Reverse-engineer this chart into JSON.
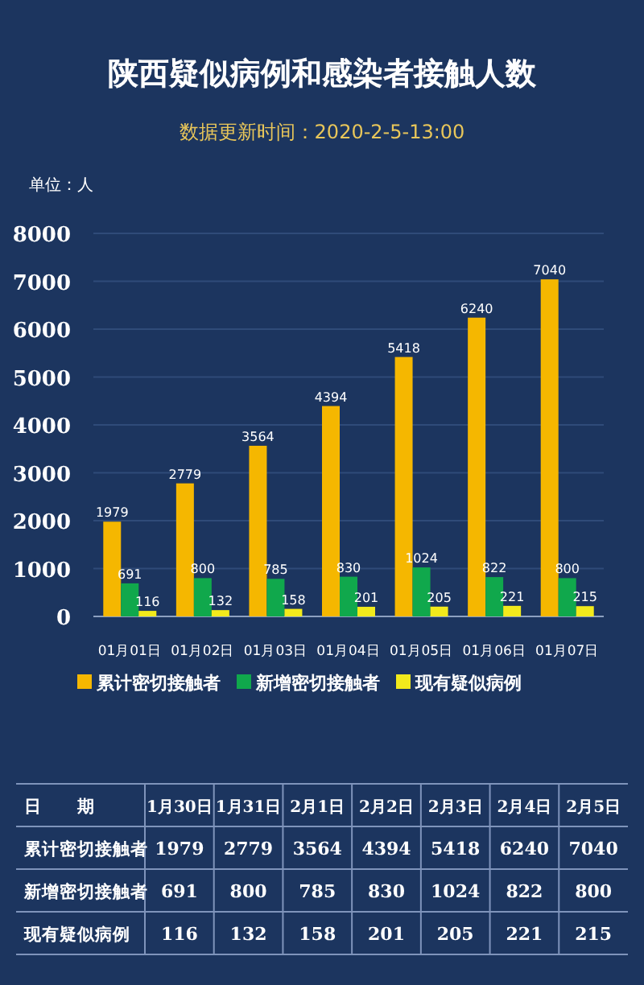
{
  "chart_data": [
    {
      "type": "bar",
      "title": "陕西疑似病例和感染者接触人数",
      "subtitle": "数据更新时间：2020-2-5-13:00",
      "ylabel": "单位：人",
      "categories": [
        "01月01日",
        "01月02日",
        "01月03日",
        "01月04日",
        "01月05日",
        "01月06日",
        "01月07日"
      ],
      "series": [
        {
          "name": "累计密切接触者",
          "color": "#f5b700",
          "values": [
            1979,
            2779,
            3564,
            4394,
            5418,
            6240,
            7040
          ]
        },
        {
          "name": "新增密切接触者",
          "color": "#10a84c",
          "values": [
            691,
            800,
            785,
            830,
            1024,
            822,
            800
          ]
        },
        {
          "name": "现有疑似病例",
          "color": "#f2ea1c",
          "values": [
            116,
            132,
            158,
            201,
            205,
            221,
            215
          ]
        }
      ],
      "ylim": [
        0,
        8000
      ],
      "yticks": [
        0,
        1000,
        2000,
        3000,
        4000,
        5000,
        6000,
        7000,
        8000
      ],
      "grid": "y",
      "legend": "bottom",
      "data_labels": true
    },
    {
      "type": "other",
      "annotations": [
        "日　　期"
      ],
      "categories": [
        "1月30日",
        "1月31日",
        "2月1日",
        "2月2日",
        "2月3日",
        "2月4日",
        "2月5日"
      ],
      "series": [
        {
          "name": "累计密切接触者",
          "values": [
            1979,
            2779,
            3564,
            4394,
            5418,
            6240,
            7040
          ]
        },
        {
          "name": "新增密切接触者",
          "values": [
            691,
            800,
            785,
            830,
            1024,
            822,
            800
          ]
        },
        {
          "name": "现有疑似病例",
          "values": [
            116,
            132,
            158,
            201,
            205,
            221,
            215
          ]
        }
      ],
      "data_labels": true
    }
  ]
}
